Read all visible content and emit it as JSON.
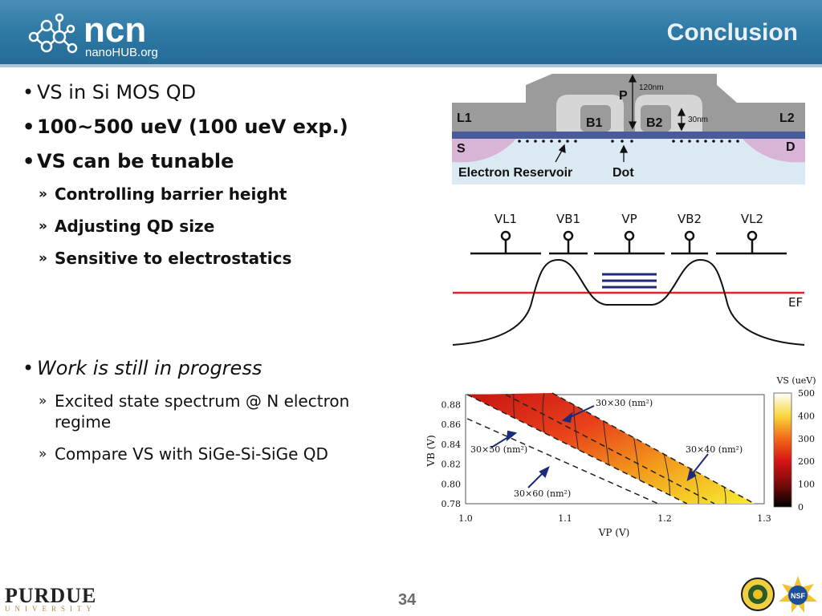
{
  "header": {
    "brand_name": "ncn",
    "brand_url": "nanoHUB.org",
    "title": "Conclusion"
  },
  "bullets": {
    "b1": "VS in Si MOS QD",
    "b2": "100~500 ueV (100 ueV exp.)",
    "b3": "VS can be tunable",
    "b3_subs": [
      "Controlling barrier height",
      "Adjusting QD size",
      "Sensitive to electrostatics"
    ],
    "b4": "Work is still in progress",
    "b4_subs": [
      "Excited state spectrum @ N electron regime",
      "Compare VS with SiGe-Si-SiGe QD"
    ]
  },
  "device": {
    "labels": {
      "p": "P",
      "l1": "L1",
      "l2": "L2",
      "b1": "B1",
      "b2": "B2",
      "s": "S",
      "d": "D",
      "reservoir": "Electron Reservoir",
      "dot": "Dot",
      "dim1": "120nm",
      "dim2": "30nm"
    }
  },
  "potential": {
    "gates": [
      "VL1",
      "VB1",
      "VP",
      "VB2",
      "VL2"
    ],
    "fermi": "EF",
    "colors": {
      "fermi": "#e8202a",
      "levels": "#1e2a78"
    }
  },
  "chart_data": {
    "type": "heatmap",
    "xlabel": "VP (V)",
    "ylabel": "VB (V)",
    "xticks": [
      "1.0",
      "1.1",
      "1.2",
      "1.3"
    ],
    "yticks": [
      "0.78",
      "0.80",
      "0.82",
      "0.84",
      "0.86",
      "0.88"
    ],
    "xlim": [
      1.0,
      1.3
    ],
    "ylim": [
      0.78,
      0.89
    ],
    "colorbar": {
      "label": "VS (ueV)",
      "ticks": [
        "0",
        "100",
        "200",
        "300",
        "400",
        "500"
      ],
      "range": [
        0,
        500
      ]
    },
    "annotations": [
      "30×30 (nm²)",
      "30×50 (nm²)",
      "30×40 (nm²)",
      "30×60 (nm²)"
    ]
  },
  "footer": {
    "page": "34",
    "university": "PURDUE",
    "university_sub": "UNIVERSITY"
  }
}
